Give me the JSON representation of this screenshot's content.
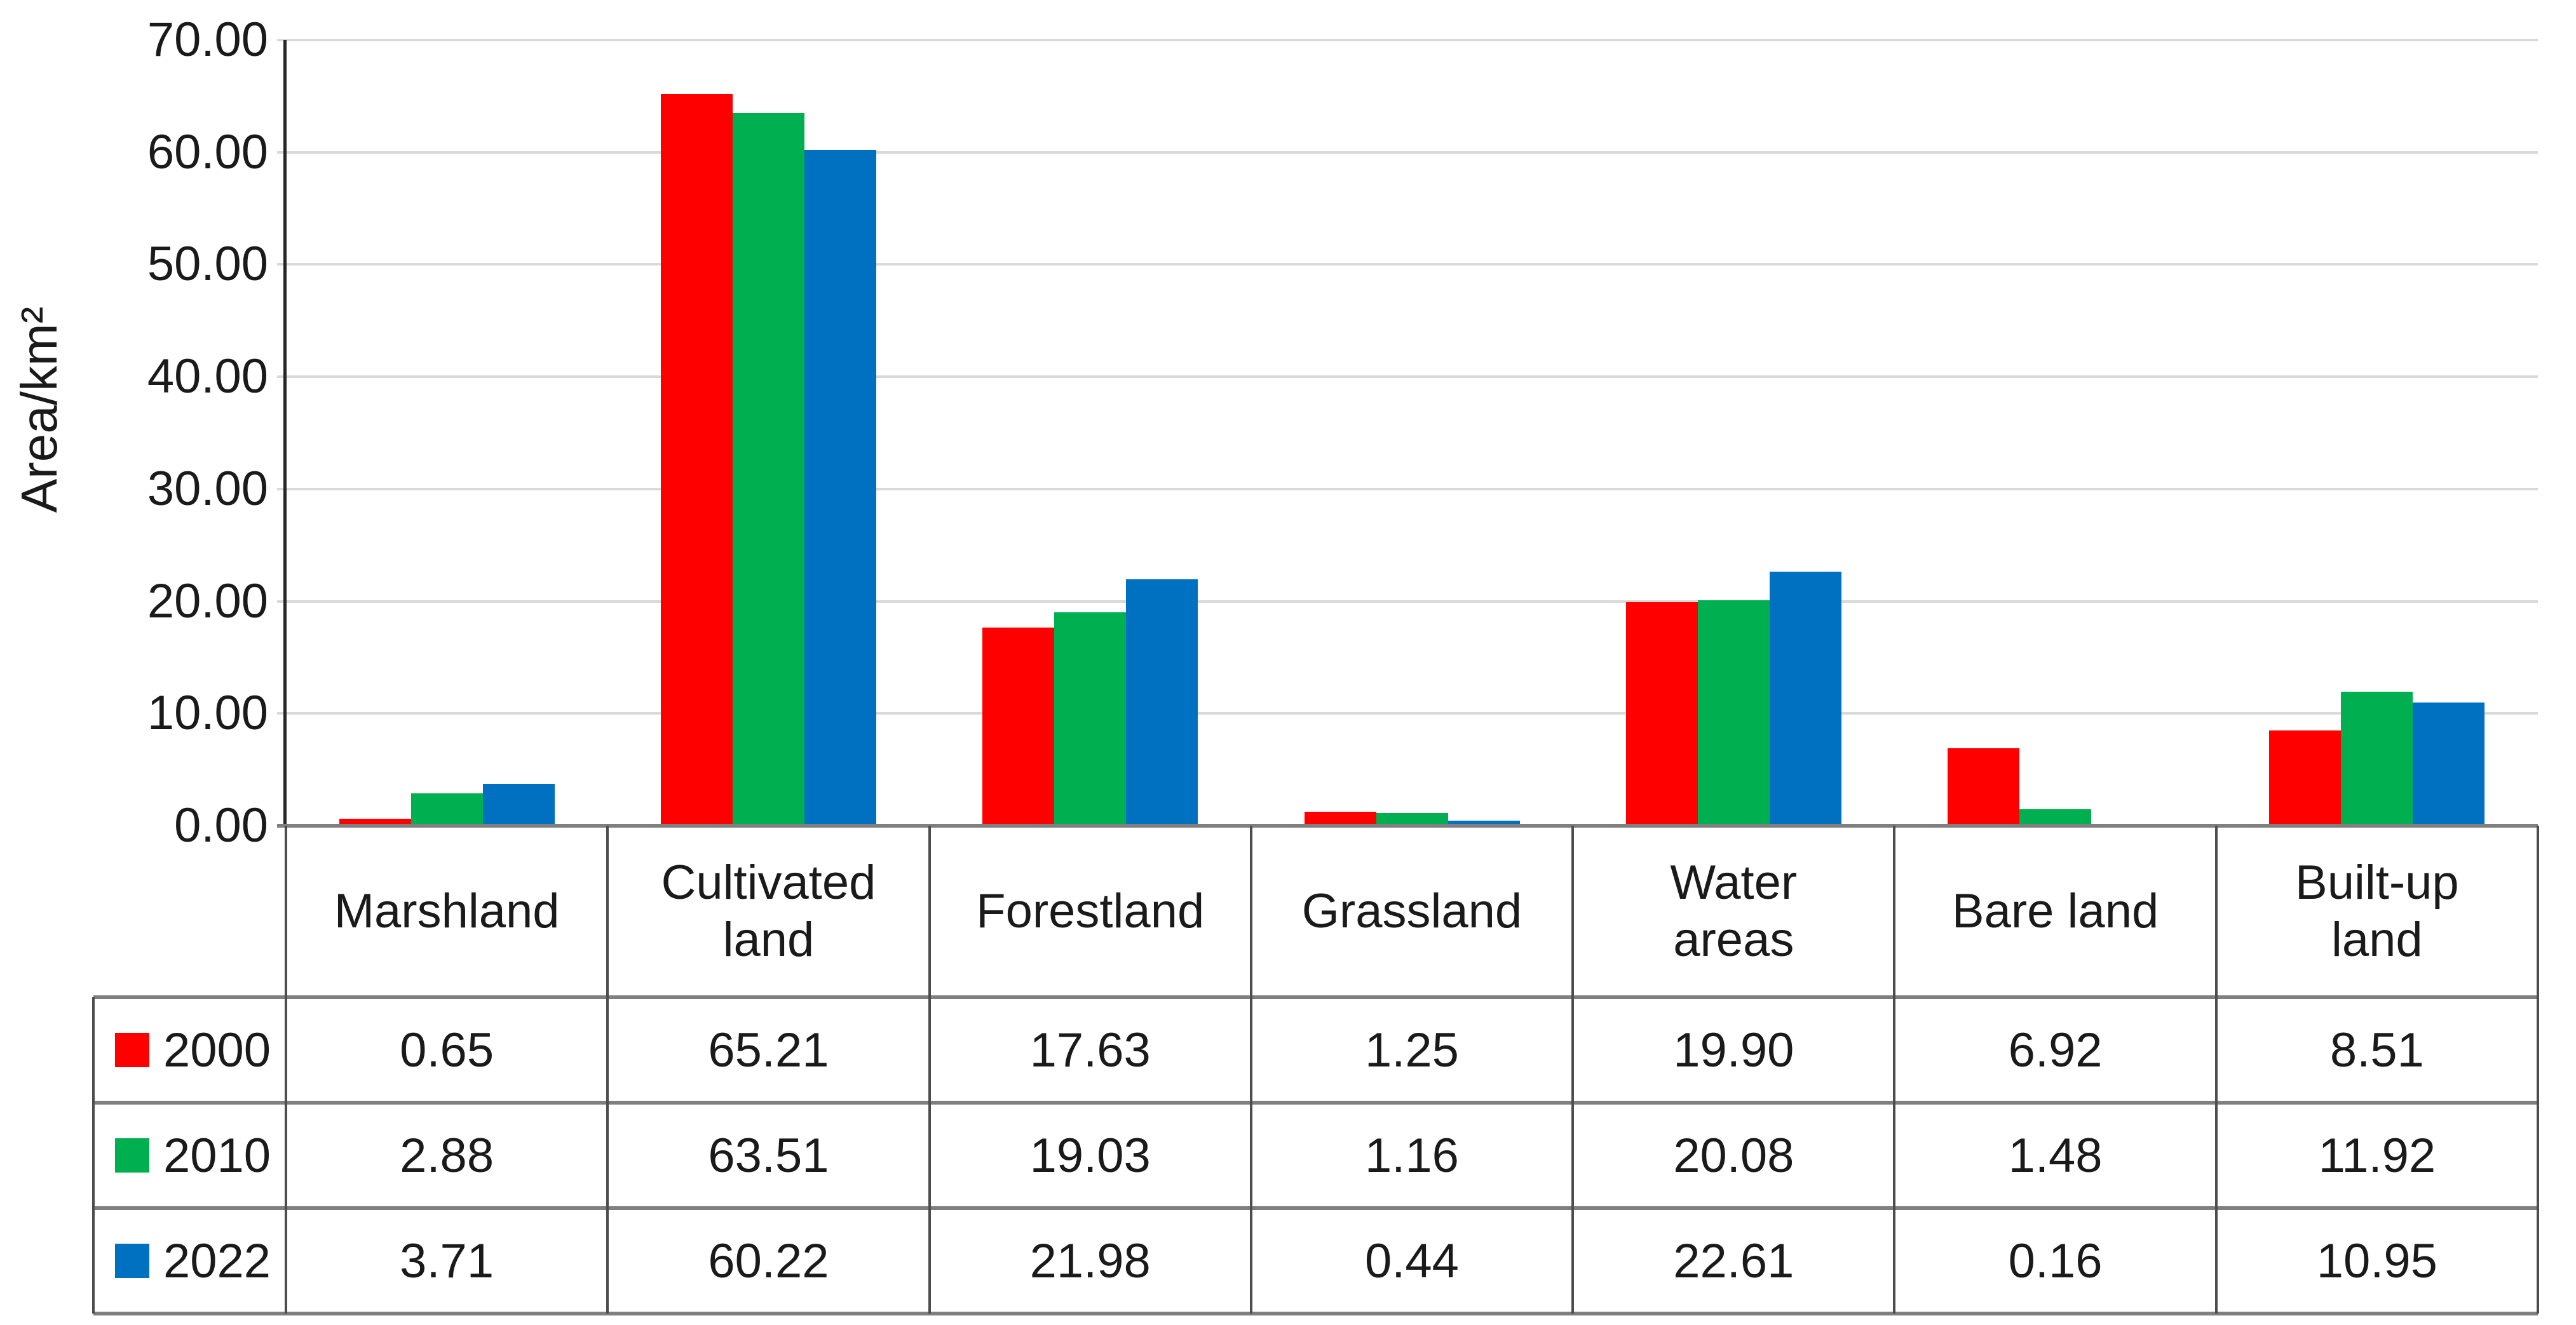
{
  "chart": {
    "y_axis": {
      "title": "Area/km²",
      "tick_labels": [
        "70.00",
        "60.00",
        "50.00",
        "40.00",
        "30.00",
        "20.00",
        "10.00",
        "0.00"
      ],
      "min": 0,
      "max": 70,
      "step": 10
    },
    "colors": {
      "series_2000": "#FF0000",
      "series_2010": "#00B050",
      "series_2022": "#0070C0",
      "gridline": "#d9d9d9",
      "axis_line": "#262626",
      "table_border_horizontal": "#7f7f7f",
      "table_border_vertical": "#4d4d4d",
      "text": "#1a1a1a"
    }
  },
  "chart_data": {
    "type": "bar",
    "categories": [
      "Marshland",
      "Cultivated land",
      "Forestland",
      "Grassland",
      "Water areas",
      "Bare land",
      "Built-up land"
    ],
    "series": [
      {
        "name": "2000",
        "color": "#FF0000",
        "values": [
          0.65,
          65.21,
          17.63,
          1.25,
          19.9,
          6.92,
          8.51
        ]
      },
      {
        "name": "2010",
        "color": "#00B050",
        "values": [
          2.88,
          63.51,
          19.03,
          1.16,
          20.08,
          1.48,
          11.92
        ]
      },
      {
        "name": "2022",
        "color": "#0070C0",
        "values": [
          3.71,
          60.22,
          21.98,
          0.44,
          22.61,
          0.16,
          10.95
        ]
      }
    ],
    "title": "",
    "xlabel": "",
    "ylabel": "Area/km²",
    "ylim": [
      0,
      70
    ],
    "grid": true,
    "legend_position": "table-left"
  },
  "table": {
    "header_row": [
      [
        "Marshland"
      ],
      [
        "Cultivated",
        "land"
      ],
      [
        "Forestland"
      ],
      [
        "Grassland"
      ],
      [
        "Water",
        "areas"
      ],
      [
        "Bare land"
      ],
      [
        "Built-up",
        "land"
      ]
    ],
    "rows": [
      {
        "year": "2000",
        "marker_color": "#FF0000",
        "values": [
          "0.65",
          "65.21",
          "17.63",
          "1.25",
          "19.90",
          "6.92",
          "8.51"
        ]
      },
      {
        "year": "2010",
        "marker_color": "#00B050",
        "values": [
          "2.88",
          "63.51",
          "19.03",
          "1.16",
          "20.08",
          "1.48",
          "11.92"
        ]
      },
      {
        "year": "2022",
        "marker_color": "#0070C0",
        "values": [
          "3.71",
          "60.22",
          "21.98",
          "0.44",
          "22.61",
          "0.16",
          "10.95"
        ]
      }
    ]
  }
}
